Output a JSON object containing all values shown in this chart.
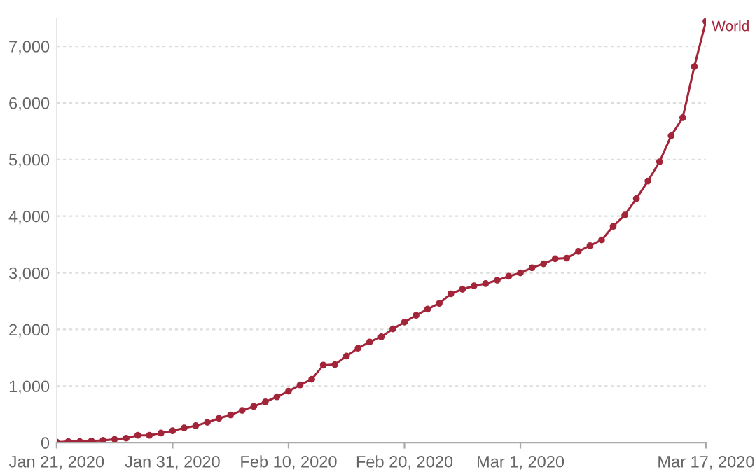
{
  "chart_data": {
    "type": "line",
    "x": [
      "2020-01-21",
      "2020-01-22",
      "2020-01-23",
      "2020-01-24",
      "2020-01-25",
      "2020-01-26",
      "2020-01-27",
      "2020-01-28",
      "2020-01-29",
      "2020-01-30",
      "2020-01-31",
      "2020-02-01",
      "2020-02-02",
      "2020-02-03",
      "2020-02-04",
      "2020-02-05",
      "2020-02-06",
      "2020-02-07",
      "2020-02-08",
      "2020-02-09",
      "2020-02-10",
      "2020-02-11",
      "2020-02-12",
      "2020-02-13",
      "2020-02-14",
      "2020-02-15",
      "2020-02-16",
      "2020-02-17",
      "2020-02-18",
      "2020-02-19",
      "2020-02-20",
      "2020-02-21",
      "2020-02-22",
      "2020-02-23",
      "2020-02-24",
      "2020-02-25",
      "2020-02-26",
      "2020-02-27",
      "2020-02-28",
      "2020-02-29",
      "2020-03-01",
      "2020-03-02",
      "2020-03-03",
      "2020-03-04",
      "2020-03-05",
      "2020-03-06",
      "2020-03-07",
      "2020-03-08",
      "2020-03-09",
      "2020-03-10",
      "2020-03-11",
      "2020-03-12",
      "2020-03-13",
      "2020-03-14",
      "2020-03-15",
      "2020-03-16",
      "2020-03-17"
    ],
    "series": [
      {
        "name": "World",
        "color": "#a2253a",
        "values": [
          10,
          20,
          20,
          30,
          40,
          60,
          80,
          130,
          130,
          170,
          210,
          260,
          300,
          360,
          430,
          490,
          570,
          640,
          720,
          810,
          910,
          1020,
          1120,
          1370,
          1380,
          1530,
          1670,
          1780,
          1870,
          2010,
          2130,
          2250,
          2360,
          2460,
          2630,
          2710,
          2770,
          2810,
          2870,
          2940,
          3000,
          3090,
          3160,
          3250,
          3260,
          3380,
          3480,
          3580,
          3820,
          4020,
          4310,
          4620,
          4960,
          5420,
          5740,
          6640,
          7440
        ]
      }
    ],
    "xlim": [
      "2020-01-21",
      "2020-03-17"
    ],
    "xticks": [
      {
        "value": "2020-01-21",
        "label": "Jan 21, 2020"
      },
      {
        "value": "2020-01-31",
        "label": "Jan 31, 2020"
      },
      {
        "value": "2020-02-10",
        "label": "Feb 10, 2020"
      },
      {
        "value": "2020-02-20",
        "label": "Feb 20, 2020"
      },
      {
        "value": "2020-03-01",
        "label": "Mar 1, 2020"
      },
      {
        "value": "2020-03-17",
        "label": "Mar 17, 2020"
      }
    ],
    "ylim": [
      0,
      7500
    ],
    "yticks": [
      {
        "value": 0,
        "label": "0"
      },
      {
        "value": 1000,
        "label": "1,000"
      },
      {
        "value": 2000,
        "label": "2,000"
      },
      {
        "value": 3000,
        "label": "3,000"
      },
      {
        "value": 4000,
        "label": "4,000"
      },
      {
        "value": 5000,
        "label": "5,000"
      },
      {
        "value": 6000,
        "label": "6,000"
      },
      {
        "value": 7000,
        "label": "7,000"
      }
    ],
    "grid": "y",
    "marker": "circle",
    "line_style": "solid",
    "legend": "right"
  }
}
